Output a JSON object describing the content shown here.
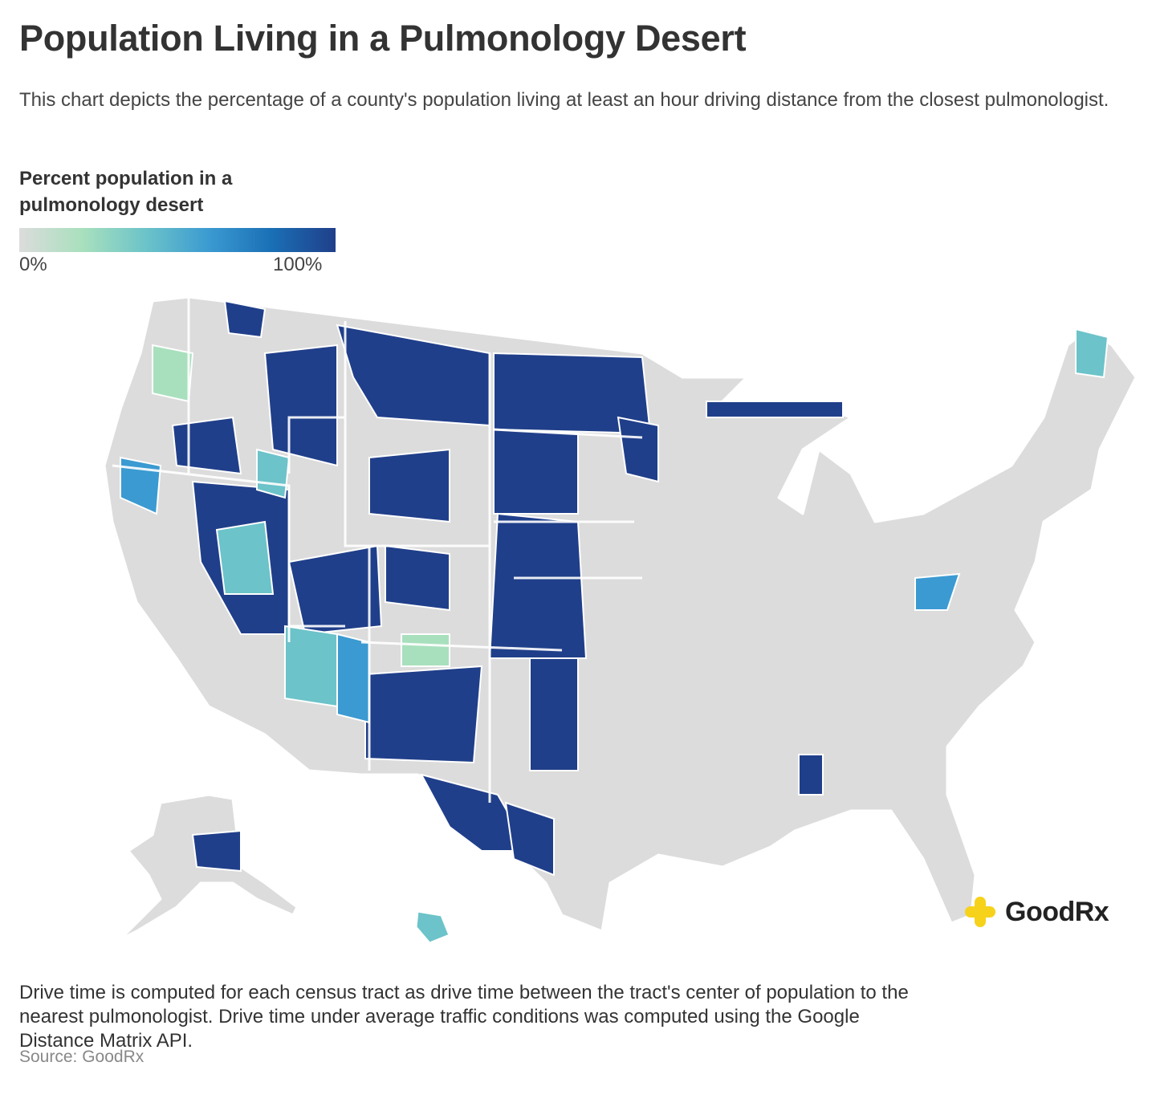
{
  "title": "Population Living in a Pulmonology Desert",
  "subtitle": "This chart depicts the percentage of a county's population living at least an hour driving distance from the closest pulmonologist.",
  "legend": {
    "title": "Percent population in a pulmonology desert",
    "min_label": "0%",
    "max_label": "100%",
    "colors": [
      "#dcdcdc",
      "#a8e0bd",
      "#6cc3c9",
      "#3b9ad1",
      "#1a6fb5",
      "#203f8a"
    ]
  },
  "chart_data": {
    "type": "choropleth",
    "title": "Population Living in a Pulmonology Desert",
    "value_label": "Percent population in a pulmonology desert",
    "scale_range": [
      0,
      100
    ],
    "unit": "%"
  },
  "footnote": "Drive time is computed for each census tract as drive time between the tract's center of population to the nearest pulmonologist. Drive time under average traffic conditions was computed using the Google Distance Matrix API.",
  "source": "Source: GoodRx",
  "brand": {
    "name": "GoodRx",
    "color": "#f7d21b"
  }
}
